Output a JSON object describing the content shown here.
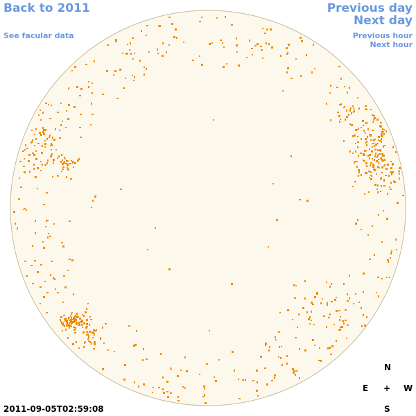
{
  "nav": {
    "back_label": "Back to 2011",
    "facular_label": "See facular data",
    "prev_day_label": "Previous day",
    "next_day_label": "Next day",
    "prev_hour_label": "Previous hour",
    "next_hour_label": "Next hour"
  },
  "compass": {
    "north": "N",
    "east": "E",
    "center": "+",
    "west": "W",
    "south": "S"
  },
  "timestamp": "2011-09-05T02:59:08",
  "colors": {
    "link": "#6a98e0",
    "disk_fill": "#fdf8ec",
    "disk_outline": "#c9b89a",
    "facula": "#f08c00"
  },
  "icons": {
    "solar_disk": "solar-disk-image"
  }
}
